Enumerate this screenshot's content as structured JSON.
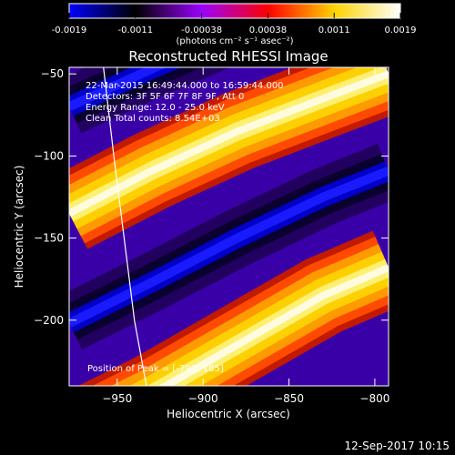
{
  "chart_data": {
    "type": "heatmap",
    "title": "Reconstructed RHESSI Image",
    "xlabel": "Heliocentric X (arcsec)",
    "ylabel": "Heliocentric Y (arcsec)",
    "xlim": [
      -978,
      -792
    ],
    "ylim": [
      -240,
      -46
    ],
    "x_ticks": [
      -950,
      -900,
      -850,
      -800
    ],
    "y_ticks": [
      -50,
      -100,
      -150,
      -200
    ],
    "colorbar": {
      "min": -0.0019,
      "max": 0.0019,
      "ticks": [
        "-0.0019",
        "-0.0011",
        "-0.00038",
        "0.00038",
        "0.0011",
        "0.0019"
      ],
      "unit_label": "(photons cm⁻² s⁻¹ asec⁻²)",
      "colormap": [
        "#0000ff",
        "#000000",
        "#9a00ff",
        "#ff0000",
        "#ffd200",
        "#ffffff"
      ]
    },
    "info_lines": [
      "22-Mar-2015 16:49:44.000 to 16:59:44.000",
      "Detectors: 3F 5F 6F 7F 8F 9F, Att 0",
      "Energy Range: 12.0 - 25.0 keV",
      "Clean     Total counts: 8.54E+03"
    ],
    "peak_label": "Position of Peak = [-793,-185]",
    "peak": [
      -793,
      -185
    ],
    "bands": [
      {
        "type": "bright",
        "points": [
          [
            -978,
            -135
          ],
          [
            -930,
            -109
          ],
          [
            -880,
            -85
          ],
          [
            -830,
            -65
          ],
          [
            -792,
            -50
          ]
        ]
      },
      {
        "type": "bright",
        "points": [
          [
            -978,
            -270
          ],
          [
            -930,
            -245
          ],
          [
            -880,
            -215
          ],
          [
            -830,
            -185
          ],
          [
            -792,
            -168
          ]
        ]
      },
      {
        "type": "dark",
        "points": [
          [
            -978,
            -70
          ],
          [
            -930,
            -47
          ],
          [
            -880,
            -25
          ],
          [
            -830,
            -5
          ],
          [
            -792,
            10
          ]
        ]
      },
      {
        "type": "dark",
        "points": [
          [
            -978,
            -202
          ],
          [
            -930,
            -177
          ],
          [
            -880,
            -150
          ],
          [
            -830,
            -125
          ],
          [
            -792,
            -109
          ]
        ]
      }
    ],
    "limb_arc": [
      [
        -958,
        -46
      ],
      [
        -952,
        -100
      ],
      [
        -946,
        -150
      ],
      [
        -940,
        -200
      ],
      [
        -933,
        -240
      ]
    ]
  },
  "footer_date": "12-Sep-2017 10:15"
}
